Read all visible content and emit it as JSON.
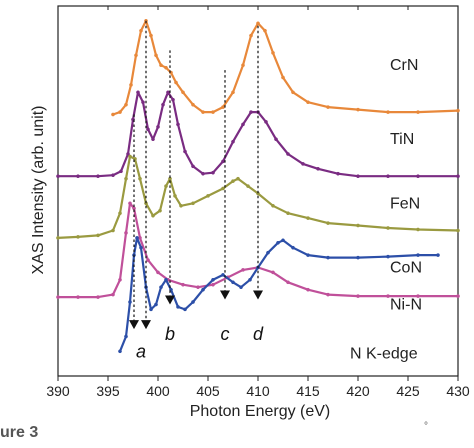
{
  "caption": {
    "label": "ure 3",
    "trailing": "°"
  },
  "chart_data": {
    "type": "line",
    "xlabel": "Photon Energy (eV)",
    "ylabel": "XAS Intensity (arb. unit)",
    "xlim": [
      390,
      430
    ],
    "xticks": [
      390,
      395,
      400,
      405,
      410,
      415,
      420,
      425,
      430
    ],
    "xtick_labels": [
      "390",
      "395",
      "400",
      "405",
      "410",
      "415",
      "420",
      "425",
      "430"
    ],
    "series": [
      {
        "name": "CrN",
        "color": "#e8883a",
        "points": [
          [
            395.5,
            5.3
          ],
          [
            396.2,
            5.35
          ],
          [
            396.8,
            5.5
          ],
          [
            397.3,
            5.9
          ],
          [
            397.8,
            6.5
          ],
          [
            398.3,
            7.0
          ],
          [
            398.8,
            7.2
          ],
          [
            399.3,
            6.9
          ],
          [
            399.8,
            6.5
          ],
          [
            400.3,
            6.3
          ],
          [
            400.8,
            6.25
          ],
          [
            401.3,
            6.15
          ],
          [
            401.8,
            5.95
          ],
          [
            402.5,
            5.75
          ],
          [
            403.5,
            5.5
          ],
          [
            404.5,
            5.35
          ],
          [
            405.5,
            5.35
          ],
          [
            406.5,
            5.45
          ],
          [
            407.5,
            5.75
          ],
          [
            408.5,
            6.3
          ],
          [
            409.3,
            6.9
          ],
          [
            410,
            7.15
          ],
          [
            410.7,
            7.0
          ],
          [
            411.5,
            6.55
          ],
          [
            412.5,
            6.05
          ],
          [
            413.5,
            5.75
          ],
          [
            415,
            5.55
          ],
          [
            417,
            5.45
          ],
          [
            420,
            5.4
          ],
          [
            423,
            5.35
          ],
          [
            426,
            5.35
          ],
          [
            430,
            5.38
          ]
        ]
      },
      {
        "name": "TiN",
        "color": "#7a2c82",
        "points": [
          [
            390,
            4.05
          ],
          [
            392,
            4.05
          ],
          [
            394,
            4.05
          ],
          [
            395.5,
            4.07
          ],
          [
            396.3,
            4.15
          ],
          [
            397,
            4.5
          ],
          [
            397.5,
            5.2
          ],
          [
            398,
            5.75
          ],
          [
            398.5,
            5.55
          ],
          [
            399,
            5.0
          ],
          [
            399.5,
            4.8
          ],
          [
            400,
            5.05
          ],
          [
            400.5,
            5.5
          ],
          [
            401,
            5.75
          ],
          [
            401.5,
            5.6
          ],
          [
            402,
            5.1
          ],
          [
            402.7,
            4.55
          ],
          [
            403.5,
            4.25
          ],
          [
            404.5,
            4.1
          ],
          [
            405.5,
            4.12
          ],
          [
            406.5,
            4.35
          ],
          [
            407.5,
            4.75
          ],
          [
            408.5,
            5.1
          ],
          [
            409.3,
            5.35
          ],
          [
            410,
            5.35
          ],
          [
            410.8,
            5.15
          ],
          [
            411.8,
            4.8
          ],
          [
            413,
            4.5
          ],
          [
            414.5,
            4.3
          ],
          [
            416,
            4.2
          ],
          [
            418,
            4.1
          ],
          [
            420,
            4.05
          ],
          [
            423,
            4.05
          ],
          [
            426,
            4.05
          ],
          [
            430,
            4.05
          ]
        ]
      },
      {
        "name": "FeN",
        "color": "#9a9a40",
        "points": [
          [
            390,
            2.8
          ],
          [
            392,
            2.82
          ],
          [
            394,
            2.85
          ],
          [
            395.5,
            2.95
          ],
          [
            396.2,
            3.3
          ],
          [
            396.8,
            4.0
          ],
          [
            397.2,
            4.45
          ],
          [
            397.7,
            4.4
          ],
          [
            398.2,
            4.0
          ],
          [
            398.8,
            3.5
          ],
          [
            399.5,
            3.25
          ],
          [
            400.2,
            3.35
          ],
          [
            400.8,
            3.85
          ],
          [
            401.2,
            4.0
          ],
          [
            401.7,
            3.65
          ],
          [
            402.3,
            3.45
          ],
          [
            403.5,
            3.5
          ],
          [
            405,
            3.65
          ],
          [
            406.5,
            3.8
          ],
          [
            407.5,
            3.95
          ],
          [
            408,
            4.0
          ],
          [
            409,
            3.85
          ],
          [
            410,
            3.7
          ],
          [
            411.5,
            3.45
          ],
          [
            413,
            3.3
          ],
          [
            415,
            3.2
          ],
          [
            417,
            3.1
          ],
          [
            420,
            3.05
          ],
          [
            423,
            3.0
          ],
          [
            426,
            2.97
          ],
          [
            430,
            2.95
          ]
        ]
      },
      {
        "name": "CoN",
        "color": "#c0509a",
        "points": [
          [
            390,
            1.6
          ],
          [
            392,
            1.6
          ],
          [
            394,
            1.6
          ],
          [
            395.5,
            1.65
          ],
          [
            396.2,
            1.95
          ],
          [
            396.8,
            2.9
          ],
          [
            397.2,
            3.5
          ],
          [
            397.6,
            3.4
          ],
          [
            398.2,
            2.8
          ],
          [
            399,
            2.35
          ],
          [
            400,
            2.1
          ],
          [
            401,
            1.95
          ],
          [
            402.5,
            1.85
          ],
          [
            404,
            1.8
          ],
          [
            405.5,
            1.85
          ],
          [
            407,
            2.0
          ],
          [
            408.5,
            2.15
          ],
          [
            410,
            2.2
          ],
          [
            411.5,
            2.1
          ],
          [
            413,
            1.9
          ],
          [
            415,
            1.75
          ],
          [
            417,
            1.65
          ],
          [
            420,
            1.62
          ],
          [
            423,
            1.62
          ],
          [
            426,
            1.62
          ],
          [
            430,
            1.62
          ]
        ]
      },
      {
        "name": "Ni-N",
        "color": "#2c4fa8",
        "points": [
          [
            396.2,
            0.5
          ],
          [
            396.8,
            0.8
          ],
          [
            397.2,
            1.5
          ],
          [
            397.6,
            2.45
          ],
          [
            397.9,
            2.8
          ],
          [
            398.3,
            2.6
          ],
          [
            398.8,
            1.8
          ],
          [
            399.3,
            1.35
          ],
          [
            399.8,
            1.45
          ],
          [
            400.3,
            1.8
          ],
          [
            400.8,
            1.95
          ],
          [
            401.3,
            1.75
          ],
          [
            402,
            1.4
          ],
          [
            402.7,
            1.35
          ],
          [
            403.5,
            1.5
          ],
          [
            404.5,
            1.75
          ],
          [
            405.5,
            1.95
          ],
          [
            406.5,
            2.05
          ],
          [
            407.5,
            1.9
          ],
          [
            408.3,
            1.8
          ],
          [
            409.2,
            1.95
          ],
          [
            410,
            2.2
          ],
          [
            411,
            2.5
          ],
          [
            412,
            2.7
          ],
          [
            412.5,
            2.75
          ],
          [
            413.5,
            2.6
          ],
          [
            415,
            2.45
          ],
          [
            417,
            2.4
          ],
          [
            420,
            2.4
          ],
          [
            423,
            2.42
          ],
          [
            426,
            2.45
          ],
          [
            428,
            2.45
          ]
        ]
      }
    ],
    "series_labels": [
      {
        "text": "CrN",
        "x": 423.2,
        "y": 6.2
      },
      {
        "text": "TiN",
        "x": 423.2,
        "y": 4.7
      },
      {
        "text": "FeN",
        "x": 423.2,
        "y": 3.4
      },
      {
        "text": "CoN",
        "x": 423.2,
        "y": 2.1
      },
      {
        "text": "Ni-N",
        "x": 423.2,
        "y": 1.35
      },
      {
        "text": "N K-edge",
        "x": 419.2,
        "y": 0.35
      }
    ],
    "markers": [
      {
        "label": "a",
        "x": 397.6,
        "line_top": 5.3,
        "arrow_y": 0.95,
        "label_x": 398.3,
        "label_y": 0.5
      },
      {
        "label": "b",
        "x": 401.2,
        "line_top": 6.6,
        "arrow_y": 1.45,
        "label_x": 401.2,
        "label_y": 0.85
      },
      {
        "label": "c",
        "x": 406.7,
        "line_top": 6.2,
        "arrow_y": 1.55,
        "label_x": 406.7,
        "label_y": 0.85
      },
      {
        "label": "d",
        "x": 410.0,
        "line_top": 7.1,
        "arrow_y": 1.55,
        "label_x": 410.0,
        "label_y": 0.85
      }
    ],
    "extra_dashed": [
      {
        "x": 398.8,
        "top": 7.2,
        "bottom": 0.95
      }
    ],
    "grid": false,
    "ylim": [
      0,
      7.5
    ]
  }
}
